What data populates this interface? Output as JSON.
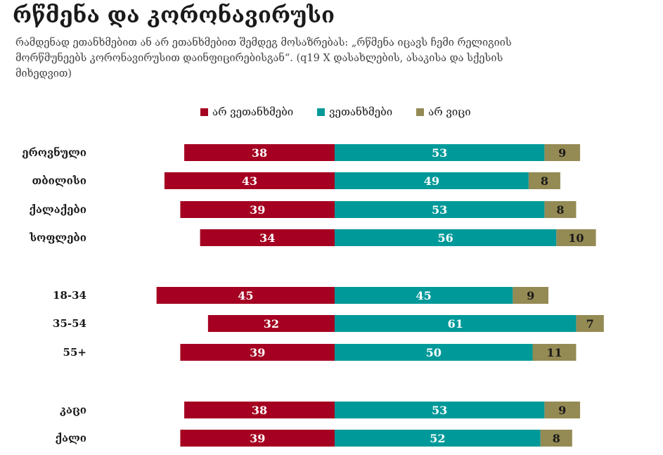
{
  "header": {
    "title": "რწმენა და კორონავირუსი",
    "subtitle": "რამდენად ეთანხმებით ან არ ეთანხმებით შემდეგ მოსაზრებას: „რწმენა იცავს ჩემი რელიგიის მორწმუნეებს კორონავირუსით დაინფიცირებისგან“. (q19 X დასახლების, ასაკისა და სქესის მიხედვით)"
  },
  "legend": [
    {
      "label": "არ ვეთანხმები",
      "color": "#A50021"
    },
    {
      "label": "ვეთანხმები",
      "color": "#009999"
    },
    {
      "label": "არ ვიცი",
      "color": "#948A54"
    }
  ],
  "chart_data": {
    "type": "bar",
    "orientation": "horizontal",
    "stacked": "diverging",
    "categories": [
      "ეროვნული",
      "თბილისი",
      "ქალაქები",
      "სოფლები",
      "18-34",
      "35-54",
      "55+",
      "კაცი",
      "ქალი"
    ],
    "groups": [
      [
        0,
        1,
        2,
        3
      ],
      [
        4,
        5,
        6
      ],
      [
        7,
        8
      ]
    ],
    "series": [
      {
        "name": "არ ვეთანხმები",
        "color": "#A50021",
        "values": [
          38,
          43,
          39,
          34,
          45,
          32,
          39,
          38,
          39
        ]
      },
      {
        "name": "ვეთანხმები",
        "color": "#009999",
        "values": [
          53,
          49,
          53,
          56,
          45,
          61,
          50,
          53,
          52
        ]
      },
      {
        "name": "არ ვიცი",
        "color": "#948A54",
        "values": [
          9,
          8,
          8,
          10,
          9,
          7,
          11,
          9,
          8
        ]
      }
    ],
    "legend_position": "top",
    "grid": false
  }
}
